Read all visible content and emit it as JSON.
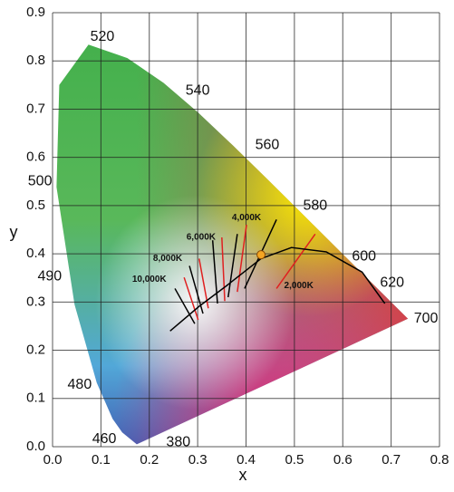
{
  "chart_data": {
    "type": "chromaticity",
    "xlabel": "x",
    "ylabel": "y",
    "xlim": [
      0,
      0.8
    ],
    "ylim": [
      0,
      0.9
    ],
    "xticks": [
      {
        "value": 0,
        "label": "0.0"
      },
      0.1,
      0.2,
      0.3,
      0.4,
      0.5,
      0.6,
      0.7,
      0.8
    ],
    "yticks": [
      {
        "value": 0,
        "label": "0.0"
      },
      0.1,
      0.2,
      0.3,
      0.4,
      0.5,
      0.6,
      0.7,
      0.8,
      0.9
    ],
    "grid": true,
    "locus": {
      "x": [
        0.1741,
        0.144,
        0.1241,
        0.0913,
        0.0454,
        0.0082,
        0.0139,
        0.0743,
        0.1547,
        0.2296,
        0.3016,
        0.3731,
        0.4441,
        0.5125,
        0.5752,
        0.627,
        0.6915,
        0.7347
      ],
      "y": [
        0.005,
        0.0297,
        0.0578,
        0.1327,
        0.295,
        0.5384,
        0.7502,
        0.8338,
        0.8059,
        0.7543,
        0.6923,
        0.6245,
        0.5547,
        0.4866,
        0.4242,
        0.3725,
        0.3083,
        0.2653
      ]
    },
    "wavelength_labels": [
      {
        "label": "520",
        "x": 0.103,
        "y": 0.85
      },
      {
        "label": "540",
        "x": 0.3,
        "y": 0.738
      },
      {
        "label": "560",
        "x": 0.444,
        "y": 0.625
      },
      {
        "label": "580",
        "x": 0.543,
        "y": 0.499
      },
      {
        "label": "600",
        "x": 0.644,
        "y": 0.394
      },
      {
        "label": "620",
        "x": 0.702,
        "y": 0.34
      },
      {
        "label": "700",
        "x": 0.772,
        "y": 0.265
      },
      {
        "label": "500",
        "x": -0.026,
        "y": 0.55
      },
      {
        "label": "490",
        "x": -0.006,
        "y": 0.353
      },
      {
        "label": "480",
        "x": 0.056,
        "y": 0.128
      },
      {
        "label": "460",
        "x": 0.107,
        "y": 0.015
      },
      {
        "label": "380",
        "x": 0.26,
        "y": 0.009
      }
    ],
    "planckian": {
      "x": [
        0.243,
        0.303,
        0.36,
        0.431,
        0.494,
        0.566,
        0.64,
        0.687
      ],
      "y": [
        0.24,
        0.291,
        0.334,
        0.39,
        0.413,
        0.404,
        0.362,
        0.297
      ],
      "color": "#000000"
    },
    "isotherms": [
      {
        "x": [
          0.253,
          0.294
        ],
        "y": [
          0.328,
          0.255
        ],
        "color": "#000000"
      },
      {
        "x": [
          0.272,
          0.301
        ],
        "y": [
          0.351,
          0.263
        ],
        "color": "#e02020"
      },
      {
        "x": [
          0.283,
          0.311
        ],
        "y": [
          0.375,
          0.276
        ],
        "color": "#000000"
      },
      {
        "x": [
          0.303,
          0.322
        ],
        "y": [
          0.39,
          0.287
        ],
        "color": "#e02020"
      },
      {
        "x": [
          0.331,
          0.341
        ],
        "y": [
          0.428,
          0.297
        ],
        "color": "#000000"
      },
      {
        "x": [
          0.35,
          0.356
        ],
        "y": [
          0.434,
          0.302
        ],
        "color": "#e02020"
      },
      {
        "x": [
          0.382,
          0.363
        ],
        "y": [
          0.441,
          0.31
        ],
        "color": "#000000"
      },
      {
        "x": [
          0.401,
          0.382
        ],
        "y": [
          0.46,
          0.321
        ],
        "color": "#e02020"
      },
      {
        "x": [
          0.463,
          0.397
        ],
        "y": [
          0.471,
          0.328
        ],
        "color": "#000000"
      },
      {
        "x": [
          0.543,
          0.463
        ],
        "y": [
          0.441,
          0.328
        ],
        "color": "#e02020"
      }
    ],
    "cct_labels": [
      {
        "label": "10,000K",
        "x": 0.2,
        "y": 0.347
      },
      {
        "label": "8,000K",
        "x": 0.238,
        "y": 0.39
      },
      {
        "label": "6,000K",
        "x": 0.307,
        "y": 0.434
      },
      {
        "label": "4,000K",
        "x": 0.401,
        "y": 0.475
      },
      {
        "label": "2,000K",
        "x": 0.509,
        "y": 0.334
      }
    ],
    "marker": {
      "x": 0.431,
      "y": 0.398,
      "color": "#f5a623"
    }
  }
}
